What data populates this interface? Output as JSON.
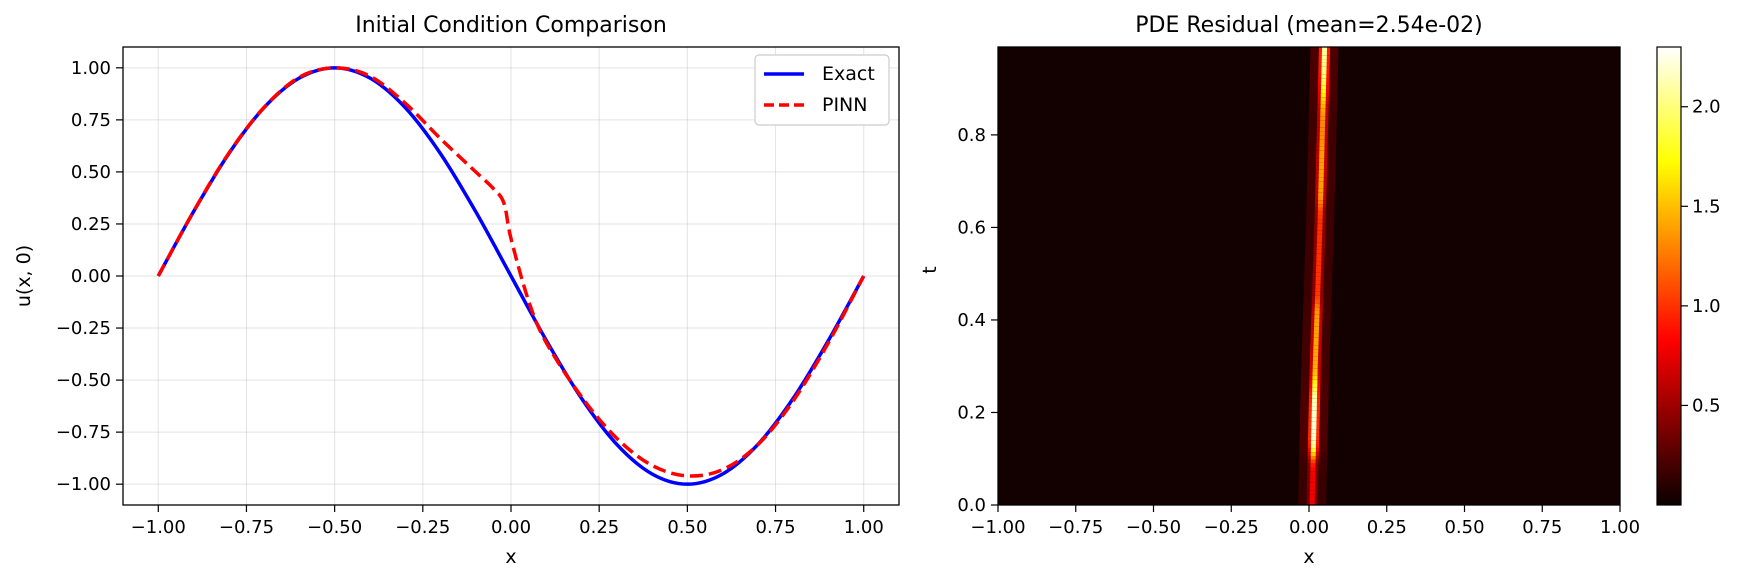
{
  "chart_data": [
    {
      "type": "line",
      "title": "Initial Condition Comparison",
      "xlabel": "x",
      "ylabel": "u(x, 0)",
      "xlim": [
        -1.1,
        1.1
      ],
      "ylim": [
        -1.1,
        1.1
      ],
      "xticks": [
        -1.0,
        -0.75,
        -0.5,
        -0.25,
        0.0,
        0.25,
        0.5,
        0.75,
        1.0
      ],
      "xtick_labels": [
        "−1.00",
        "−0.75",
        "−0.50",
        "−0.25",
        "0.00",
        "0.25",
        "0.50",
        "0.75",
        "1.00"
      ],
      "yticks": [
        1.0,
        0.75,
        0.5,
        0.25,
        0.0,
        -0.25,
        -0.5,
        -0.75,
        -1.0
      ],
      "ytick_labels": [
        "1.00",
        "0.75",
        "0.50",
        "0.25",
        "0.00",
        "−0.25",
        "−0.50",
        "−0.75",
        "−1.00"
      ],
      "grid": true,
      "legend_position": "top-right",
      "series": [
        {
          "name": "Exact",
          "color": "#0000ff",
          "style": "solid",
          "x": [
            -1.0,
            -0.9,
            -0.8,
            -0.7,
            -0.6,
            -0.5,
            -0.4,
            -0.3,
            -0.2,
            -0.1,
            0.0,
            0.1,
            0.2,
            0.3,
            0.4,
            0.5,
            0.6,
            0.7,
            0.8,
            0.9,
            1.0
          ],
          "y": [
            0.0,
            0.309,
            0.588,
            0.809,
            0.951,
            1.0,
            0.951,
            0.809,
            0.588,
            0.309,
            0.0,
            -0.309,
            -0.588,
            -0.809,
            -0.951,
            -1.0,
            -0.951,
            -0.809,
            -0.588,
            -0.309,
            0.0
          ]
        },
        {
          "name": "PINN",
          "color": "#ff0000",
          "style": "dashed",
          "x": [
            -1.0,
            -0.9,
            -0.8,
            -0.7,
            -0.6,
            -0.5,
            -0.4,
            -0.3,
            -0.2,
            -0.1,
            -0.05,
            -0.02,
            0.0,
            0.05,
            0.1,
            0.2,
            0.3,
            0.4,
            0.5,
            0.6,
            0.7,
            0.8,
            0.9,
            1.0
          ],
          "y": [
            0.0,
            0.31,
            0.59,
            0.81,
            0.955,
            1.0,
            0.96,
            0.83,
            0.66,
            0.5,
            0.42,
            0.35,
            0.18,
            -0.12,
            -0.32,
            -0.58,
            -0.78,
            -0.91,
            -0.96,
            -0.93,
            -0.81,
            -0.6,
            -0.32,
            0.0
          ]
        }
      ]
    },
    {
      "type": "heatmap",
      "title": "PDE Residual (mean=2.54e-02)",
      "xlabel": "x",
      "ylabel": "t",
      "xlim": [
        -1.0,
        1.0
      ],
      "ylim": [
        0.0,
        0.99
      ],
      "xticks": [
        -1.0,
        -0.75,
        -0.5,
        -0.25,
        0.0,
        0.25,
        0.5,
        0.75,
        1.0
      ],
      "xtick_labels": [
        "−1.00",
        "−0.75",
        "−0.50",
        "−0.25",
        "0.00",
        "0.25",
        "0.50",
        "0.75",
        "1.00"
      ],
      "yticks": [
        0.0,
        0.2,
        0.4,
        0.6,
        0.8
      ],
      "ytick_labels": [
        "0.0",
        "0.2",
        "0.4",
        "0.6",
        "0.8"
      ],
      "colormap": "hot",
      "colorbar": {
        "min": 0.0,
        "max": 2.3,
        "ticks": [
          0.5,
          1.0,
          1.5,
          2.0
        ],
        "tick_labels": [
          "0.5",
          "1.0",
          "1.5",
          "2.0"
        ]
      },
      "background_value": 0.03,
      "residual_ridge": {
        "x_center_at_t": [
          {
            "t": 0.0,
            "x": 0.01
          },
          {
            "t": 0.3,
            "x": 0.02
          },
          {
            "t": 0.6,
            "x": 0.035
          },
          {
            "t": 0.99,
            "x": 0.05
          }
        ],
        "peak_values": [
          {
            "t": 0.02,
            "value": 0.8
          },
          {
            "t": 0.2,
            "value": 2.2
          },
          {
            "t": 0.32,
            "value": 1.4
          },
          {
            "t": 0.55,
            "value": 1.0
          },
          {
            "t": 0.75,
            "value": 1.4
          },
          {
            "t": 0.85,
            "value": 1.2
          },
          {
            "t": 0.92,
            "value": 2.1
          }
        ]
      }
    }
  ]
}
